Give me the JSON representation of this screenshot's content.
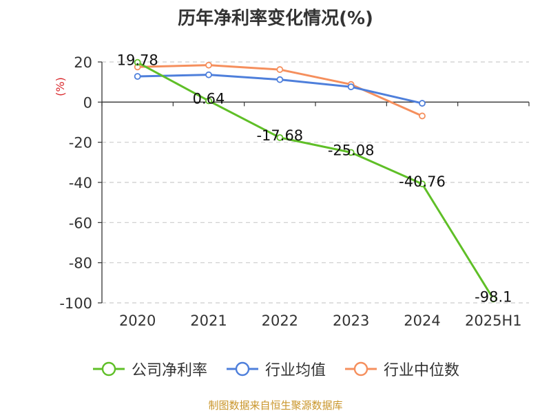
{
  "chart_data": {
    "type": "line",
    "title": "历年净利率变化情况(%)",
    "ylabel": "(%)",
    "categories": [
      "2020",
      "2021",
      "2022",
      "2023",
      "2024",
      "2025H1"
    ],
    "ylim": [
      -100,
      20
    ],
    "yticks": [
      20,
      0,
      -20,
      -40,
      -60,
      -80,
      -100
    ],
    "grid": true,
    "legend_position": "bottom",
    "series": [
      {
        "name": "公司净利率",
        "color": "#5fbf27",
        "values": [
          19.78,
          0.64,
          -17.68,
          -25.08,
          -40.76,
          -98.1
        ],
        "labels": [
          "19.78",
          "0.64",
          "-17.68",
          "-25.08",
          "-40.76",
          "-98.1"
        ]
      },
      {
        "name": "行业均值",
        "color": "#4e7fdb",
        "values": [
          12.8,
          13.6,
          11.2,
          7.6,
          -0.6,
          null
        ]
      },
      {
        "name": "行业中位数",
        "color": "#f58f5d",
        "values": [
          17.5,
          18.4,
          16.2,
          8.8,
          -6.9,
          null
        ]
      }
    ]
  },
  "footer": {
    "source": "制图数据来自恒生聚源数据库"
  }
}
